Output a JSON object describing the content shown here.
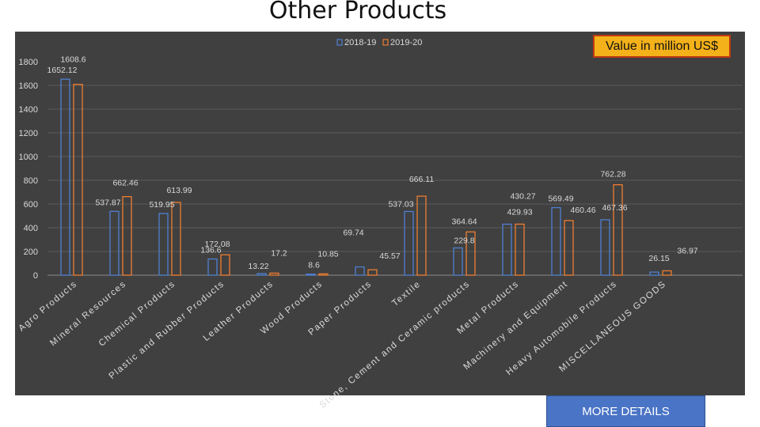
{
  "page": {
    "title": "Other Products",
    "unit_label": "Value in million US$",
    "more_button": "MORE DETAILS"
  },
  "colors": {
    "series_2018": "#4f7fd0",
    "series_2019": "#ee7d31",
    "plot_bg": "#404040",
    "axis_text": "#d9d9d9",
    "gridline": "#5a5a5a"
  },
  "chart_data": {
    "type": "bar",
    "title": "Other Products",
    "categories": [
      "Agro Products",
      "Mineral Resources",
      "Chemical Products",
      "Plastic and Rubber Products",
      "Leather Products",
      "Wood Products",
      "Paper Products",
      "Textile",
      "Stone, Cement and Ceramic products",
      "Metal Products",
      "Machinery and Equipment",
      "Heavy Automobile Products",
      "MISCELLANEOUS GOODS"
    ],
    "series": [
      {
        "name": "2018-19",
        "values": [
          1652.12,
          537.87,
          519.95,
          136.6,
          13.22,
          8.6,
          69.74,
          537.03,
          229.8,
          429.93,
          569.49,
          467.36,
          26.15
        ]
      },
      {
        "name": "2019-20",
        "values": [
          1608.6,
          662.46,
          613.99,
          172.08,
          17.2,
          10.85,
          45.57,
          666.11,
          364.64,
          430.27,
          460.46,
          762.28,
          36.97
        ]
      }
    ],
    "data_labels": [
      [
        "1652.12",
        "537.87",
        "519.95",
        "136.6",
        "13.22",
        "8.6",
        "69.74",
        "537.03",
        "229.8",
        "429.93",
        "569.49",
        "467.36",
        "26.15"
      ],
      [
        "1608.6",
        "662.46",
        "613.99",
        "172.08",
        "17.2",
        "10.85",
        "45.57",
        "666.11",
        "364.64",
        "430.27",
        "460.46",
        "762.28",
        "36.97"
      ]
    ],
    "yticks": [
      0,
      200,
      400,
      600,
      800,
      1000,
      1200,
      1400,
      1600,
      1800
    ],
    "ylim": [
      0,
      1800
    ],
    "grid": true,
    "legend_position": "top"
  }
}
